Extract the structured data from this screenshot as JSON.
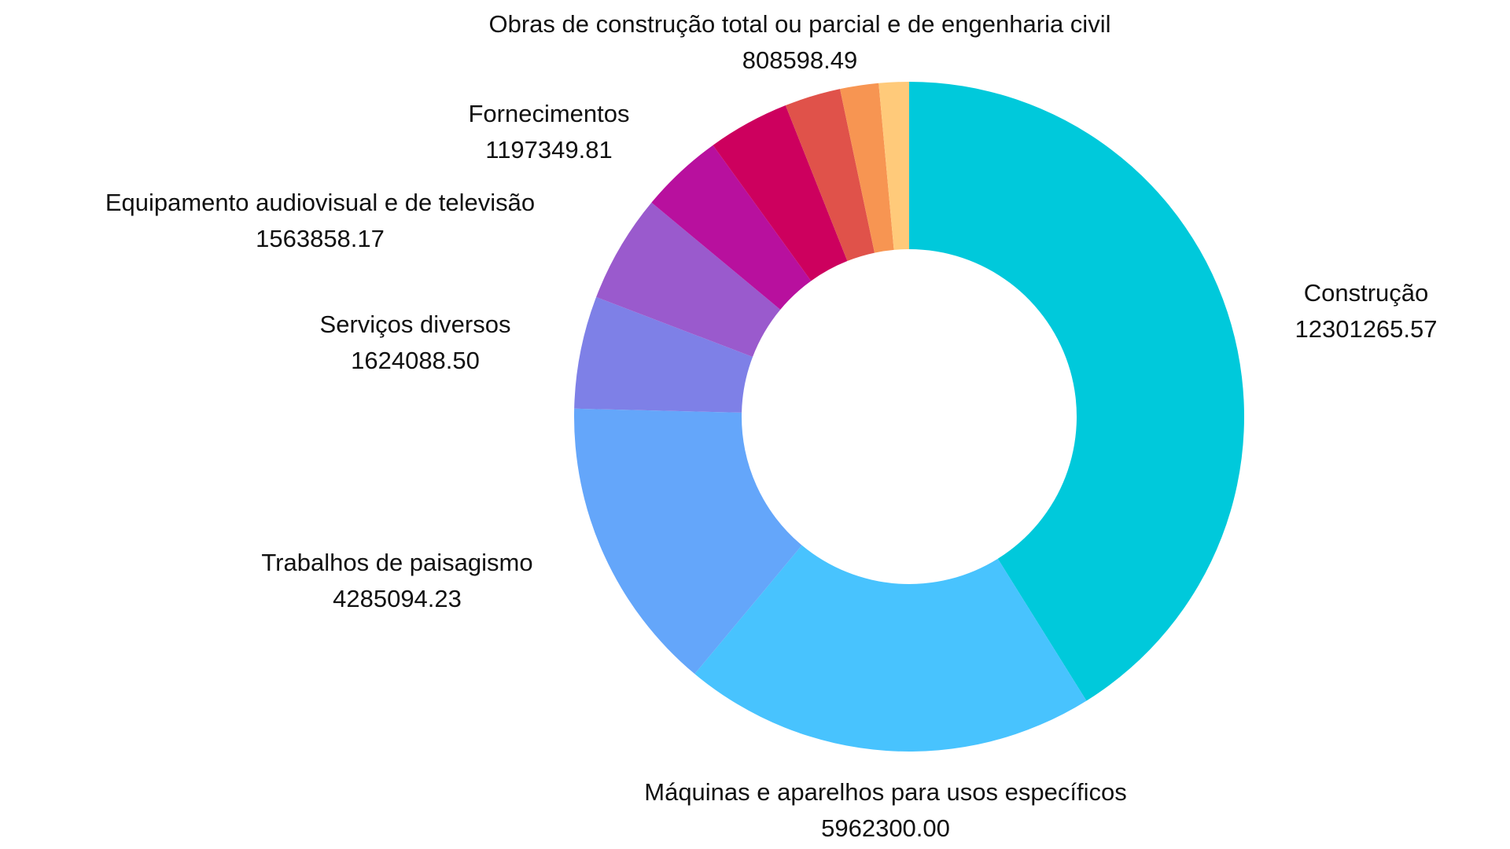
{
  "chart_data": {
    "type": "pie",
    "variant": "donut",
    "title": "",
    "legend": "none",
    "slices": [
      {
        "label": "Construção",
        "value": 12301265.57,
        "value_text": "12301265.57",
        "color": "#00C9DB"
      },
      {
        "label": "Máquinas e aparelhos para usos específicos",
        "value": 5962300.0,
        "value_text": "5962300.00",
        "color": "#48C3FE"
      },
      {
        "label": "Trabalhos de paisagismo",
        "value": 4285094.23,
        "value_text": "4285094.23",
        "color": "#64A6FA"
      },
      {
        "label": "Serviços diversos",
        "value": 1624088.5,
        "value_text": "1624088.50",
        "color": "#7E80E7"
      },
      {
        "label": "Equipamento audiovisual e de televisão",
        "value": 1563858.17,
        "value_text": "1563858.17",
        "color": "#9A5ACD"
      },
      {
        "label": "Fornecimentos",
        "value": 1197349.81,
        "value_text": "1197349.81",
        "color": "#B8109E"
      },
      {
        "label": "",
        "value": 1180000,
        "value_text": "",
        "color": "#CD005E"
      },
      {
        "label": "Obras de construção total ou parcial e de engenharia civil",
        "value": 808598.49,
        "value_text": "808598.49",
        "color": "#E0524A"
      },
      {
        "label": "",
        "value": 556000,
        "value_text": "",
        "color": "#F79552"
      },
      {
        "label": "",
        "value": 434000,
        "value_text": "",
        "color": "#FFCA7A"
      }
    ]
  }
}
